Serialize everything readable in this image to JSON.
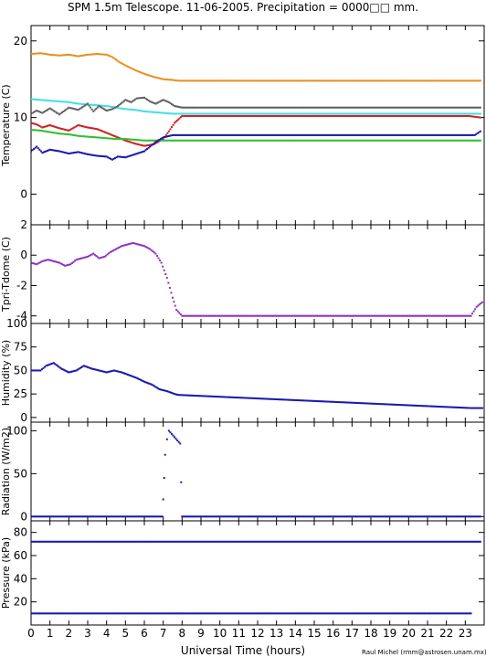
{
  "title": "SPM 1.5m Telescope. 11-06-2005. Precipitation = 0000□□ mm.",
  "xlabel": "Universal Time (hours)",
  "credit": "Raul Michel (rmm@astrosen.unam.mx)",
  "chart_data": [
    {
      "type": "scatter",
      "ylabel": "Temperature (C)",
      "xlim": [
        0,
        24
      ],
      "ylim": [
        -4,
        22
      ],
      "yticks": [
        0,
        10,
        20
      ],
      "series": [
        {
          "color": "#e8901e",
          "x": [
            0,
            0.5,
            1,
            1.5,
            2,
            2.5,
            3,
            3.5,
            4,
            4.3,
            4.7,
            5,
            5.5,
            6,
            6.5,
            7,
            7.5,
            7.8,
            8,
            10,
            15,
            20,
            23.8
          ],
          "y": [
            18.3,
            18.4,
            18.2,
            18.1,
            18.2,
            18.0,
            18.2,
            18.3,
            18.2,
            17.9,
            17.2,
            16.8,
            16.2,
            15.7,
            15.3,
            15.0,
            14.9,
            14.8,
            14.8,
            14.8,
            14.8,
            14.8,
            14.8
          ]
        },
        {
          "color": "#40e0e8",
          "x": [
            0,
            0.5,
            1,
            1.5,
            2,
            2.5,
            3,
            3.5,
            4,
            4.5,
            5,
            5.5,
            6,
            6.5,
            7,
            7.5,
            8,
            10,
            15,
            20,
            23.8
          ],
          "y": [
            12.4,
            12.3,
            12.2,
            12.1,
            12.0,
            11.8,
            11.7,
            11.6,
            11.5,
            11.3,
            11.1,
            11.0,
            10.8,
            10.7,
            10.6,
            10.5,
            10.5,
            10.5,
            10.5,
            10.5,
            10.5
          ]
        },
        {
          "color": "#606060",
          "x": [
            0,
            0.3,
            0.6,
            1,
            1.5,
            2,
            2.5,
            3,
            3.3,
            3.6,
            4,
            4.3,
            4.6,
            5,
            5.3,
            5.6,
            6,
            6.3,
            6.6,
            7,
            7.3,
            7.6,
            8,
            10,
            15,
            20,
            23.8
          ],
          "y": [
            10.5,
            10.9,
            10.6,
            11.2,
            10.4,
            11.3,
            11.0,
            11.8,
            10.8,
            11.5,
            10.9,
            11.1,
            11.5,
            12.3,
            12.0,
            12.5,
            12.6,
            12.1,
            11.8,
            12.3,
            12.0,
            11.5,
            11.3,
            11.3,
            11.3,
            11.3,
            11.3
          ]
        },
        {
          "color": "#d02020",
          "x": [
            0,
            0.3,
            0.6,
            1,
            1.5,
            2,
            2.5,
            3,
            3.5,
            4,
            4.5,
            5,
            5.5,
            6,
            6.5,
            7,
            7.3,
            7.6,
            8,
            10,
            15,
            20,
            23.2,
            23.8
          ],
          "y": [
            9.3,
            9.1,
            8.7,
            9.0,
            8.6,
            8.3,
            9.0,
            8.7,
            8.5,
            8.0,
            7.5,
            7.0,
            6.6,
            6.3,
            6.5,
            7.2,
            8.2,
            9.3,
            10.2,
            10.2,
            10.2,
            10.2,
            10.2,
            10.0
          ]
        },
        {
          "color": "#30c030",
          "x": [
            0,
            0.5,
            1,
            1.5,
            2,
            2.5,
            3,
            3.5,
            4,
            4.5,
            5,
            5.5,
            6,
            6.5,
            7,
            7.5,
            8,
            10,
            15,
            20,
            23.8
          ],
          "y": [
            8.4,
            8.3,
            8.1,
            7.9,
            7.8,
            7.6,
            7.5,
            7.4,
            7.3,
            7.2,
            7.2,
            7.1,
            7.0,
            7.0,
            7.0,
            7.0,
            7.0,
            7.0,
            7.0,
            7.0,
            7.0
          ]
        },
        {
          "color": "#1a1ab0",
          "x": [
            0,
            0.3,
            0.6,
            1,
            1.5,
            2,
            2.5,
            3,
            3.5,
            4,
            4.3,
            4.6,
            5,
            5.5,
            6,
            6.3,
            6.6,
            7,
            7.5,
            8,
            10,
            15,
            20,
            23.5,
            23.8
          ],
          "y": [
            5.6,
            6.2,
            5.4,
            5.8,
            5.6,
            5.3,
            5.5,
            5.2,
            5.0,
            4.9,
            4.5,
            4.9,
            4.8,
            5.2,
            5.6,
            6.2,
            6.8,
            7.4,
            7.7,
            7.7,
            7.7,
            7.7,
            7.7,
            7.7,
            8.2
          ]
        }
      ]
    },
    {
      "type": "scatter",
      "ylabel": "Tpri-Tdome (C)",
      "xlim": [
        0,
        24
      ],
      "ylim": [
        -4.5,
        2
      ],
      "yticks": [
        -4,
        -2,
        0,
        2
      ],
      "series": [
        {
          "color": "#9030c0",
          "x": [
            0,
            0.3,
            0.6,
            0.9,
            1.2,
            1.5,
            1.8,
            2.1,
            2.4,
            2.7,
            3,
            3.3,
            3.6,
            3.9,
            4.2,
            4.5,
            4.8,
            5.1,
            5.4,
            5.7,
            6,
            6.3,
            6.6,
            6.9,
            7.2,
            7.5,
            7.7,
            8,
            10,
            15,
            20,
            23.3,
            23.6,
            23.9
          ],
          "y": [
            -0.5,
            -0.6,
            -0.4,
            -0.3,
            -0.4,
            -0.5,
            -0.7,
            -0.6,
            -0.3,
            -0.2,
            -0.1,
            0.1,
            -0.2,
            -0.1,
            0.2,
            0.4,
            0.6,
            0.7,
            0.8,
            0.7,
            0.6,
            0.4,
            0.1,
            -0.5,
            -1.5,
            -2.8,
            -3.6,
            -4.0,
            -4.0,
            -4.0,
            -4.0,
            -4.0,
            -3.4,
            -3.1
          ]
        }
      ]
    },
    {
      "type": "scatter",
      "ylabel": "Humidity (%)",
      "xlim": [
        0,
        24
      ],
      "ylim": [
        -5,
        100
      ],
      "yticks": [
        0,
        25,
        50,
        75,
        100
      ],
      "series": [
        {
          "color": "#1a1ab0",
          "x": [
            0,
            0.5,
            0.8,
            1.2,
            1.6,
            2,
            2.4,
            2.8,
            3.2,
            3.6,
            4,
            4.4,
            4.8,
            5.2,
            5.6,
            6,
            6.4,
            6.8,
            7.2,
            7.6,
            7.8,
            23.3,
            23.9
          ],
          "y": [
            50,
            50,
            55,
            58,
            52,
            48,
            50,
            55,
            52,
            50,
            48,
            50,
            48,
            45,
            42,
            38,
            35,
            30,
            28,
            25,
            24,
            10,
            10
          ]
        }
      ]
    },
    {
      "type": "scatter",
      "ylabel": "Radiation (W/m2)",
      "xlim": [
        0,
        24
      ],
      "ylim": [
        -5,
        110
      ],
      "yticks": [
        0,
        50,
        100
      ],
      "series": [
        {
          "color": "#1a1ab0",
          "x": [
            0,
            2,
            4,
            6,
            6.95,
            7.0,
            7.05,
            7.1,
            7.2,
            7.3,
            7.9,
            7.95,
            8,
            10,
            15,
            20,
            23.8
          ],
          "y": [
            0,
            0,
            0,
            0,
            0,
            20,
            45,
            72,
            90,
            100,
            85,
            40,
            0,
            0,
            0,
            0,
            0
          ]
        }
      ]
    },
    {
      "type": "scatter",
      "ylabel": "Pressure (kPa)",
      "xlim": [
        0,
        24
      ],
      "ylim": [
        0,
        90
      ],
      "yticks": [
        20,
        40,
        60,
        80
      ],
      "series": [
        {
          "color": "#1a1ab0",
          "x": [
            0,
            1,
            2,
            3,
            4,
            5,
            6,
            7,
            7.6,
            23.3,
            23.8
          ],
          "y": [
            72,
            72,
            72,
            72,
            72,
            72,
            72,
            72,
            72,
            72,
            72
          ]
        },
        {
          "color": "#1a1ab0",
          "x": [
            0,
            1,
            2,
            3,
            4,
            5,
            6,
            7,
            7.6,
            8,
            10,
            15,
            20,
            22,
            23.3
          ],
          "y": [
            10,
            10,
            10,
            10,
            10,
            10,
            10,
            10,
            10,
            10,
            10,
            10,
            10,
            10,
            10
          ]
        }
      ]
    }
  ],
  "xticks": [
    0,
    1,
    2,
    3,
    4,
    5,
    6,
    7,
    8,
    9,
    10,
    11,
    12,
    13,
    14,
    15,
    16,
    17,
    18,
    19,
    20,
    21,
    22,
    23
  ]
}
